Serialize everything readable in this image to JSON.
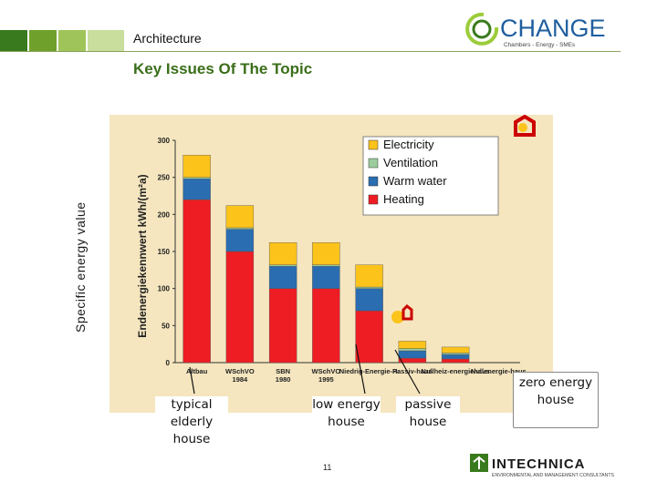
{
  "header": {
    "section": "Architecture",
    "title": "Key Issues Of The Topic",
    "logo_text": "CHANGE",
    "logo_tagline": "Chambers - Energy - SMEs",
    "accent_colors": [
      "#3a7a1e",
      "#6fa02c",
      "#9fc45a",
      "#c9dd9c"
    ]
  },
  "side_label": "Specific energy value",
  "chart_data": {
    "type": "bar",
    "stacked": true,
    "ylabel": "Endenergiekennwert kWh/(m²a)",
    "ylim": [
      0,
      300
    ],
    "yticks": [
      0,
      50,
      100,
      150,
      200,
      250,
      300
    ],
    "categories": [
      "Altbau",
      "WSchVO 1984",
      "SBN 1980",
      "WSchVO 1995",
      "Niedrig-Energie-H.",
      "Passiv-haus",
      "Nullheiz-energiehaus",
      "Nullenergie-haus"
    ],
    "series": [
      {
        "name": "Heating",
        "color": "#ee1d23",
        "values": [
          220,
          150,
          100,
          100,
          70,
          6,
          5,
          0
        ]
      },
      {
        "name": "Warm water",
        "color": "#2a6db0",
        "values": [
          28,
          30,
          30,
          30,
          30,
          10,
          6,
          0
        ]
      },
      {
        "name": "Ventilation",
        "color": "#9ccc9c",
        "values": [
          2,
          2,
          2,
          2,
          2,
          3,
          2,
          0
        ]
      },
      {
        "name": "Electricity",
        "color": "#fcc31b",
        "values": [
          30,
          30,
          30,
          30,
          30,
          10,
          8,
          0
        ]
      }
    ],
    "legend_position": "top-right",
    "grid": false
  },
  "annotations": {
    "typical": "typical elderly house",
    "low": "low energy house",
    "passive": "passive house",
    "zero": "zero energy house"
  },
  "footer": {
    "page_number": "11",
    "logo_text": "INTECHNICA",
    "logo_tagline": "ENVIRONMENTAL AND MANAGEMENT CONSULTANTS"
  }
}
